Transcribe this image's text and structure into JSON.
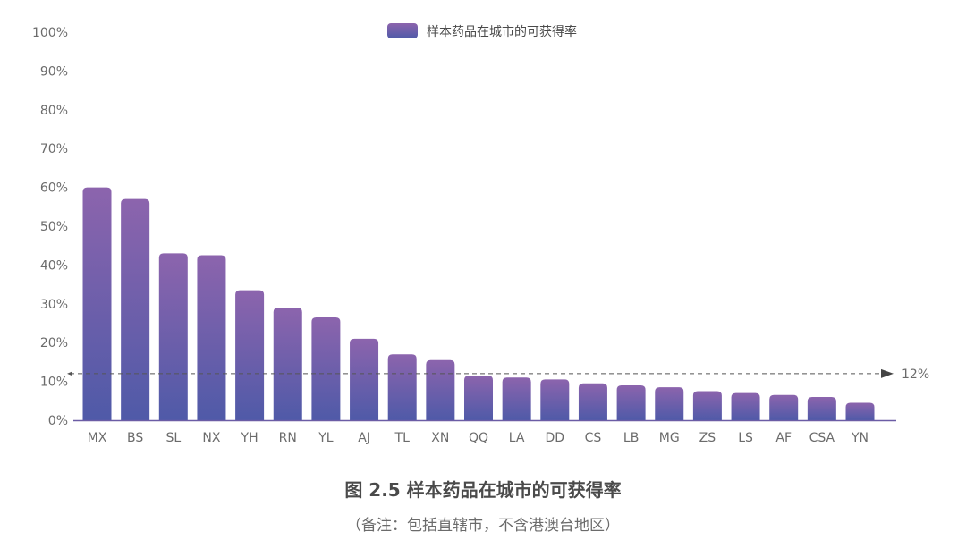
{
  "chart_data": {
    "type": "bar",
    "title": "图 2.5 样本药品在城市的可获得率",
    "note": "（备注：包括直辖市，不含港澳台地区）",
    "legend": "样本药品在城市的可获得率",
    "legend_position": "top-center",
    "categories": [
      "MX",
      "BS",
      "SL",
      "NX",
      "YH",
      "RN",
      "YL",
      "AJ",
      "TL",
      "XN",
      "QQ",
      "LA",
      "DD",
      "CS",
      "LB",
      "MG",
      "ZS",
      "LS",
      "AF",
      "CSA",
      "YN"
    ],
    "values": [
      60,
      57,
      43,
      42.5,
      33.5,
      29,
      26.5,
      21,
      17,
      15.5,
      11.5,
      11,
      10.5,
      9.5,
      9,
      8.5,
      7.5,
      7,
      6.5,
      6,
      4.5
    ],
    "ylim": [
      0,
      100
    ],
    "yticks": [
      0,
      10,
      20,
      30,
      40,
      50,
      60,
      70,
      80,
      90,
      100
    ],
    "ytick_labels": [
      "0%",
      "10%",
      "20%",
      "30%",
      "40%",
      "50%",
      "60%",
      "70%",
      "80%",
      "90%",
      "100%"
    ],
    "reference_line": {
      "value": 12,
      "label": "12%",
      "style": "dashed"
    },
    "grid": false,
    "colors": {
      "bar_top": "#8c64ad",
      "bar_bottom": "#4f5aa8",
      "axis": "#6b5ca5",
      "ref_line": "#555555"
    }
  }
}
